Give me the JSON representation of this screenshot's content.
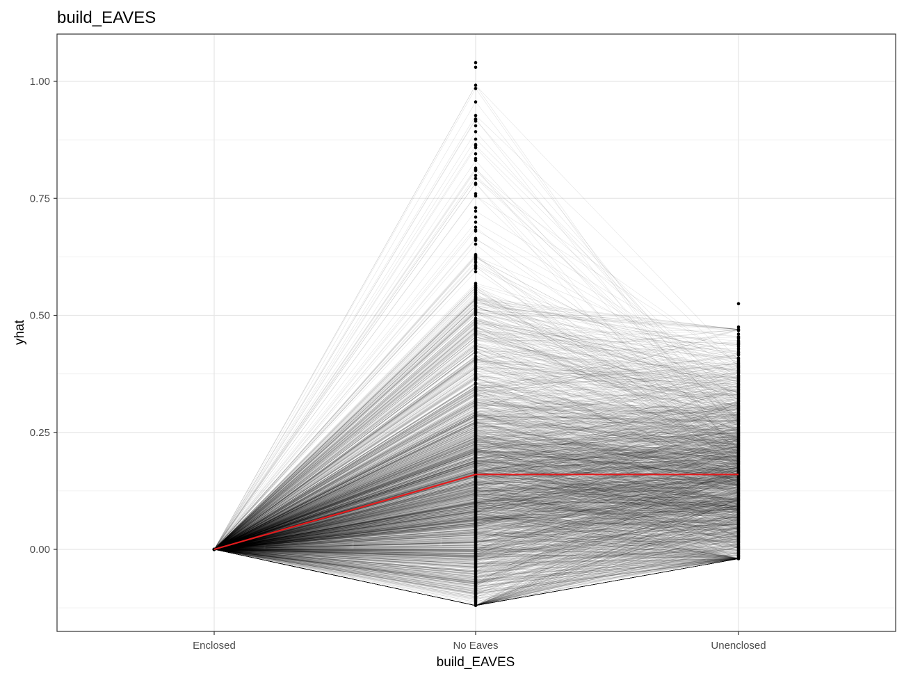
{
  "chart_data": {
    "type": "line",
    "title": "build_EAVES",
    "xlabel": "build_EAVES",
    "ylabel": "yhat",
    "categories": [
      "Enclosed",
      "No Eaves",
      "Unenclosed"
    ],
    "ylim": [
      -0.175,
      1.1
    ],
    "y_ticks": [
      0.0,
      0.25,
      0.5,
      0.75,
      1.0
    ],
    "y_tick_labels": [
      "0.00",
      "0.25",
      "0.50",
      "0.75",
      "1.00"
    ],
    "grid": true,
    "legend": "none",
    "ice_lines": {
      "count": 2000,
      "color": "#000000",
      "enclosed_value": 0.0,
      "no_eaves_range": [
        -0.12,
        1.04
      ],
      "unenclosed_range": [
        -0.02,
        0.525
      ]
    },
    "average_line": {
      "color": "#e41a1c",
      "values": [
        0.0,
        0.16,
        0.16
      ]
    },
    "highlight_points": {
      "No Eaves": [
        1.04,
        1.03,
        0.915,
        0.905,
        0.865,
        0.845,
        0.835,
        0.81,
        0.8,
        0.78,
        0.76,
        0.73,
        0.71,
        0.7,
        0.68,
        0.66,
        0.63,
        0.62,
        0.6,
        0.57,
        0.565,
        0.55,
        0.54
      ],
      "Unenclosed": [
        0.525,
        0.475,
        0.46,
        0.45,
        0.44,
        0.43,
        0.42,
        0.41
      ]
    }
  }
}
